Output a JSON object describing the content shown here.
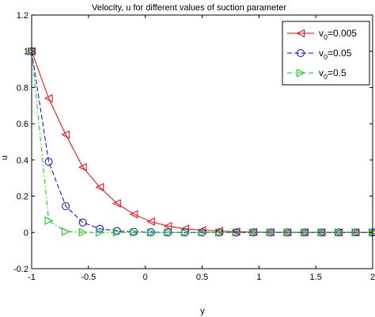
{
  "chart_data": {
    "type": "line",
    "title": "Velocity, u  for different values of suction parameter",
    "xlabel": "y",
    "ylabel": "u",
    "xlim": [
      -1,
      2
    ],
    "ylim": [
      -0.2,
      1.2
    ],
    "x_ticks": [
      "-1",
      "-0.5",
      "0",
      "0.5",
      "1",
      "1.5",
      "2"
    ],
    "y_ticks": [
      "-0.2",
      "0",
      "0.2",
      "0.4",
      "0.6",
      "0.8",
      "1",
      "1.2"
    ],
    "x_tick_values": [
      -1,
      -0.5,
      0,
      0.5,
      1,
      1.5,
      2
    ],
    "y_tick_values": [
      -0.2,
      0,
      0.2,
      0.4,
      0.6,
      0.8,
      1,
      1.2
    ],
    "grid": false,
    "legend_position": "top-right",
    "x": [
      -1,
      -0.85,
      -0.7,
      -0.55,
      -0.4,
      -0.25,
      -0.1,
      0.05,
      0.2,
      0.35,
      0.5,
      0.65,
      0.8,
      0.95,
      1.1,
      1.25,
      1.4,
      1.55,
      1.7,
      1.85,
      2
    ],
    "series": [
      {
        "name": "v0=0.005",
        "legend_main": "v",
        "legend_sub": "0",
        "legend_rest": "=0.005",
        "color": "#ff0000",
        "line_style": "solid",
        "marker": "triangle-left",
        "values": [
          1,
          0.74,
          0.54,
          0.36,
          0.25,
          0.16,
          0.1,
          0.06,
          0.035,
          0.02,
          0.012,
          0.007,
          0.004,
          0.002,
          0.001,
          0.0005,
          0.0002,
          0.0001,
          0,
          0,
          0
        ]
      },
      {
        "name": "v0=0.05",
        "legend_main": "v",
        "legend_sub": "0",
        "legend_rest": "=0.05",
        "color": "#0000ff",
        "line_style": "dashed",
        "marker": "circle",
        "values": [
          1,
          0.39,
          0.145,
          0.055,
          0.02,
          0.008,
          0.003,
          0.001,
          0.0005,
          0.0002,
          0.0001,
          0,
          0,
          0,
          0,
          0,
          0,
          0,
          0,
          0,
          0
        ]
      },
      {
        "name": "v0=0.5",
        "legend_main": "v",
        "legend_sub": "0",
        "legend_rest": "=0.5",
        "color": "#00cc00",
        "line_style": "dash-dot",
        "marker": "triangle-right",
        "values": [
          1,
          0.065,
          0.005,
          0.0005,
          0,
          0,
          0,
          0,
          0,
          0,
          0,
          0,
          0,
          0,
          0,
          0,
          0,
          0,
          0,
          0,
          0
        ]
      }
    ]
  }
}
